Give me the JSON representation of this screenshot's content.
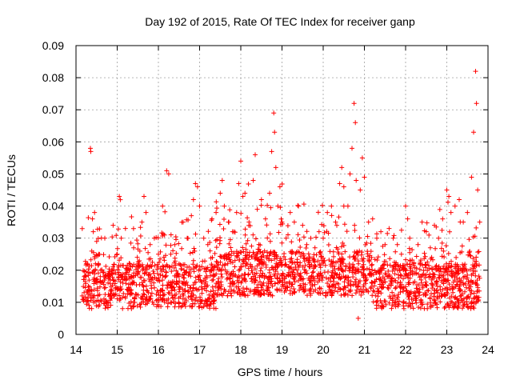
{
  "chart_data": {
    "type": "scatter",
    "title": "Day 192 of 2015, Rate Of TEC Index for receiver ganp",
    "xlabel": "GPS time / hours",
    "ylabel": "ROTI / TECUs",
    "xlim": [
      14,
      24
    ],
    "ylim": [
      0,
      0.09
    ],
    "xticks": [
      14,
      15,
      16,
      17,
      18,
      19,
      20,
      21,
      22,
      23,
      24
    ],
    "yticks": [
      0,
      0.01,
      0.02,
      0.03,
      0.04,
      0.05,
      0.06,
      0.07,
      0.08,
      0.09
    ],
    "ytick_labels": [
      "0",
      "0.01",
      "0.02",
      "0.03",
      "0.04",
      "0.05",
      "0.06",
      "0.07",
      "0.08",
      "0.09"
    ],
    "grid": true,
    "marker": "+",
    "color": "#ff0000",
    "x_data_range": [
      14.15,
      23.8
    ],
    "series": [
      {
        "name": "ROTI",
        "points": [
          [
            14.15,
            0.012
          ],
          [
            14.2,
            0.018
          ],
          [
            14.25,
            0.022
          ],
          [
            14.3,
            0.015
          ],
          [
            14.35,
            0.058
          ],
          [
            14.36,
            0.057
          ],
          [
            14.4,
            0.036
          ],
          [
            14.42,
            0.032
          ],
          [
            14.45,
            0.038
          ],
          [
            14.5,
            0.029
          ],
          [
            14.55,
            0.025
          ],
          [
            14.6,
            0.02
          ],
          [
            14.7,
            0.03
          ],
          [
            14.8,
            0.018
          ],
          [
            14.9,
            0.034
          ],
          [
            15.0,
            0.025
          ],
          [
            15.05,
            0.043
          ],
          [
            15.1,
            0.03
          ],
          [
            15.2,
            0.033
          ],
          [
            15.3,
            0.02
          ],
          [
            15.4,
            0.027
          ],
          [
            15.5,
            0.022
          ],
          [
            15.6,
            0.035
          ],
          [
            15.65,
            0.043
          ],
          [
            15.7,
            0.038
          ],
          [
            15.8,
            0.028
          ],
          [
            15.9,
            0.03
          ],
          [
            16.0,
            0.025
          ],
          [
            16.1,
            0.04
          ],
          [
            16.15,
            0.031
          ],
          [
            16.2,
            0.051
          ],
          [
            16.25,
            0.05
          ],
          [
            16.3,
            0.025
          ],
          [
            16.4,
            0.028
          ],
          [
            16.5,
            0.022
          ],
          [
            16.6,
            0.035
          ],
          [
            16.7,
            0.03
          ],
          [
            16.8,
            0.037
          ],
          [
            16.85,
            0.042
          ],
          [
            16.9,
            0.047
          ],
          [
            16.95,
            0.046
          ],
          [
            17.0,
            0.04
          ],
          [
            17.1,
            0.03
          ],
          [
            17.2,
            0.028
          ],
          [
            17.3,
            0.036
          ],
          [
            17.4,
            0.038
          ],
          [
            17.5,
            0.044
          ],
          [
            17.55,
            0.048
          ],
          [
            17.6,
            0.04
          ],
          [
            17.7,
            0.035
          ],
          [
            17.8,
            0.032
          ],
          [
            17.9,
            0.038
          ],
          [
            17.95,
            0.047
          ],
          [
            18.0,
            0.054
          ],
          [
            18.05,
            0.043
          ],
          [
            18.1,
            0.044
          ],
          [
            18.2,
            0.035
          ],
          [
            18.3,
            0.048
          ],
          [
            18.35,
            0.056
          ],
          [
            18.4,
            0.039
          ],
          [
            18.5,
            0.042
          ],
          [
            18.6,
            0.036
          ],
          [
            18.7,
            0.044
          ],
          [
            18.75,
            0.057
          ],
          [
            18.8,
            0.069
          ],
          [
            18.82,
            0.063
          ],
          [
            18.85,
            0.052
          ],
          [
            18.9,
            0.04
          ],
          [
            18.95,
            0.046
          ],
          [
            19.0,
            0.035
          ],
          [
            19.1,
            0.03
          ],
          [
            19.2,
            0.038
          ],
          [
            19.3,
            0.035
          ],
          [
            19.4,
            0.04
          ],
          [
            19.5,
            0.034
          ],
          [
            19.6,
            0.028
          ],
          [
            19.7,
            0.03
          ],
          [
            19.8,
            0.027
          ],
          [
            19.9,
            0.032
          ],
          [
            20.0,
            0.03
          ],
          [
            20.1,
            0.038
          ],
          [
            20.2,
            0.04
          ],
          [
            20.3,
            0.035
          ],
          [
            20.4,
            0.047
          ],
          [
            20.45,
            0.052
          ],
          [
            20.5,
            0.046
          ],
          [
            20.6,
            0.04
          ],
          [
            20.65,
            0.05
          ],
          [
            20.7,
            0.058
          ],
          [
            20.75,
            0.072
          ],
          [
            20.78,
            0.066
          ],
          [
            20.8,
            0.048
          ],
          [
            20.85,
            0.005
          ],
          [
            20.9,
            0.045
          ],
          [
            20.95,
            0.055
          ],
          [
            21.0,
            0.049
          ],
          [
            21.1,
            0.035
          ],
          [
            21.2,
            0.036
          ],
          [
            21.3,
            0.03
          ],
          [
            21.4,
            0.032
          ],
          [
            21.5,
            0.028
          ],
          [
            21.6,
            0.033
          ],
          [
            21.7,
            0.03
          ],
          [
            21.8,
            0.028
          ],
          [
            21.9,
            0.025
          ],
          [
            22.0,
            0.04
          ],
          [
            22.05,
            0.036
          ],
          [
            22.1,
            0.03
          ],
          [
            22.2,
            0.022
          ],
          [
            22.3,
            0.028
          ],
          [
            22.4,
            0.035
          ],
          [
            22.5,
            0.032
          ],
          [
            22.6,
            0.027
          ],
          [
            22.7,
            0.034
          ],
          [
            22.8,
            0.03
          ],
          [
            22.9,
            0.036
          ],
          [
            23.0,
            0.045
          ],
          [
            23.05,
            0.043
          ],
          [
            23.1,
            0.038
          ],
          [
            23.2,
            0.04
          ],
          [
            23.3,
            0.042
          ],
          [
            23.4,
            0.035
          ],
          [
            23.5,
            0.038
          ],
          [
            23.6,
            0.049
          ],
          [
            23.65,
            0.063
          ],
          [
            23.7,
            0.082
          ],
          [
            23.72,
            0.072
          ],
          [
            23.75,
            0.045
          ],
          [
            23.8,
            0.035
          ]
        ]
      }
    ]
  }
}
